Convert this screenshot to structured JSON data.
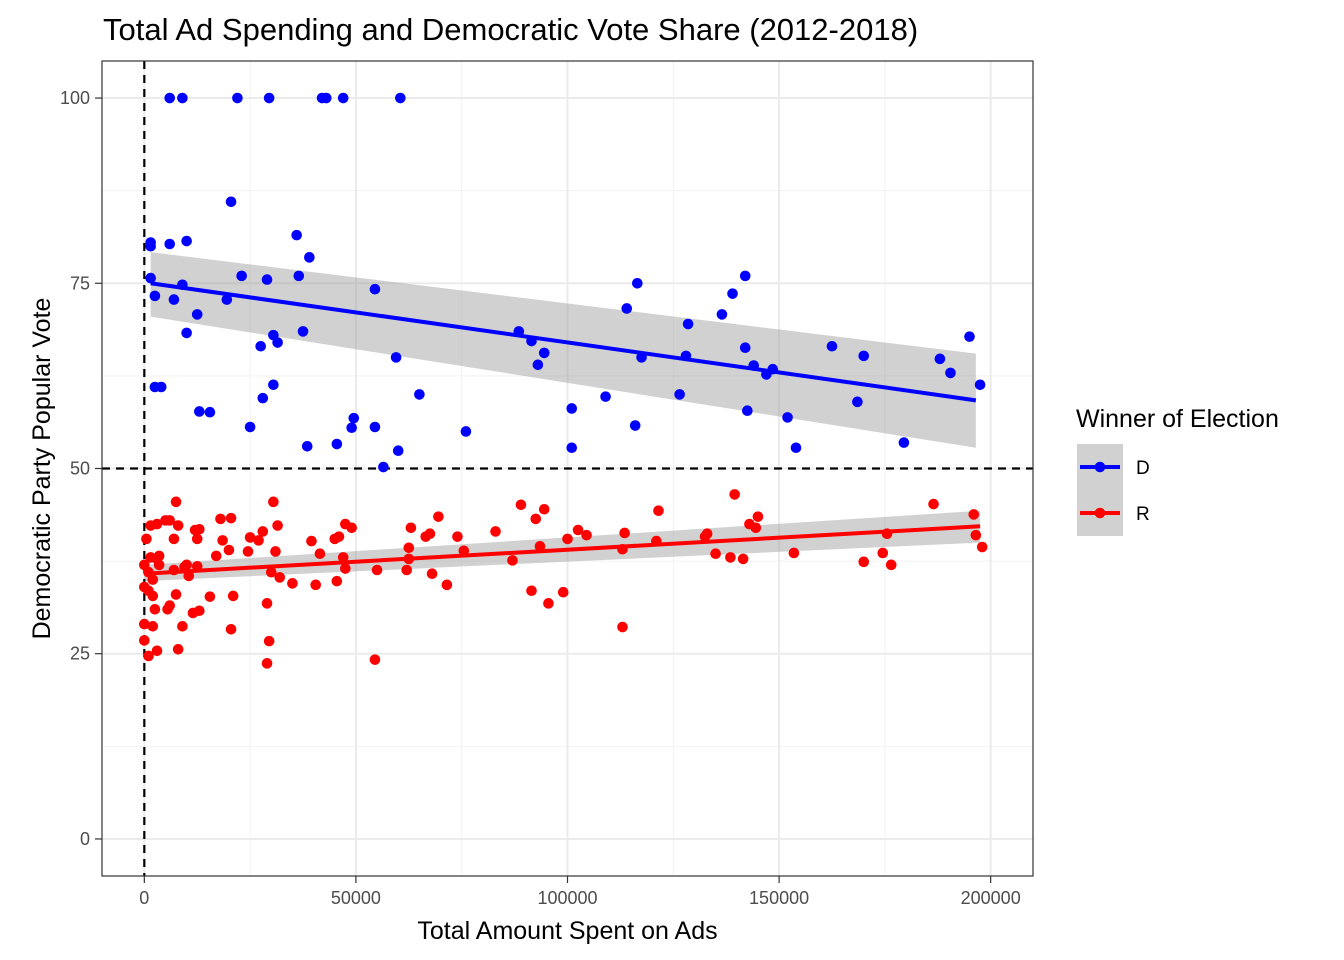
{
  "chart_data": {
    "type": "scatter",
    "title": "Total Ad Spending and Democratic Vote Share (2012-2018)",
    "xlabel": "Total Amount Spent on Ads",
    "ylabel": "Democratic Party Popular Vote",
    "xlim": [
      -10000,
      210000
    ],
    "ylim": [
      -5,
      105
    ],
    "x_ticks": [
      0,
      50000,
      100000,
      150000,
      200000
    ],
    "x_tick_labels": [
      "0",
      "50000",
      "100000",
      "150000",
      "200000"
    ],
    "y_ticks": [
      0,
      25,
      50,
      75,
      100
    ],
    "y_tick_labels": [
      "0",
      "25",
      "50",
      "75",
      "100"
    ],
    "grid": true,
    "reference_lines": {
      "vline_x": 0,
      "hline_y": 50,
      "style": "dashed"
    },
    "legend": {
      "title": "Winner of Election",
      "placement": "right"
    },
    "series": [
      {
        "name": "D",
        "color": "#0000ff",
        "fit": {
          "x": [
            1500,
            196500
          ],
          "y": [
            75.0,
            59.2
          ],
          "ci_lower": [
            70.5,
            52.8
          ],
          "ci_upper": [
            79.2,
            65.5
          ]
        },
        "points": [
          [
            6000,
            100
          ],
          [
            9000,
            100
          ],
          [
            22000,
            100
          ],
          [
            29500,
            100
          ],
          [
            42000,
            100
          ],
          [
            43000,
            100
          ],
          [
            47000,
            100
          ],
          [
            60500,
            100
          ],
          [
            20500,
            86
          ],
          [
            1500,
            80.5
          ],
          [
            1500,
            80
          ],
          [
            6000,
            80.3
          ],
          [
            10000,
            80.7
          ],
          [
            36000,
            81.5
          ],
          [
            39000,
            78.5
          ],
          [
            36500,
            76
          ],
          [
            23000,
            76
          ],
          [
            1500,
            75.7
          ],
          [
            29000,
            75.5
          ],
          [
            9000,
            74.8
          ],
          [
            2500,
            73.3
          ],
          [
            7000,
            72.8
          ],
          [
            19500,
            72.8
          ],
          [
            12500,
            70.8
          ],
          [
            54500,
            74.2
          ],
          [
            10000,
            68.3
          ],
          [
            30500,
            68
          ],
          [
            37500,
            68.5
          ],
          [
            31500,
            67
          ],
          [
            27500,
            66.5
          ],
          [
            59500,
            65
          ],
          [
            2500,
            61
          ],
          [
            4000,
            61
          ],
          [
            30500,
            61.3
          ],
          [
            28000,
            59.5
          ],
          [
            13000,
            57.7
          ],
          [
            15500,
            57.6
          ],
          [
            25000,
            55.6
          ],
          [
            49500,
            56.8
          ],
          [
            49000,
            55.5
          ],
          [
            54500,
            55.6
          ],
          [
            65000,
            60
          ],
          [
            45500,
            53.3
          ],
          [
            38500,
            53
          ],
          [
            56500,
            50.2
          ],
          [
            60000,
            52.4
          ],
          [
            76000,
            55
          ],
          [
            88500,
            68.5
          ],
          [
            91500,
            67.2
          ],
          [
            93000,
            64
          ],
          [
            94500,
            65.6
          ],
          [
            101000,
            58.1
          ],
          [
            101000,
            52.8
          ],
          [
            109000,
            59.7
          ],
          [
            114000,
            71.6
          ],
          [
            116500,
            75
          ],
          [
            116000,
            55.8
          ],
          [
            117500,
            65
          ],
          [
            126500,
            60
          ],
          [
            128500,
            69.5
          ],
          [
            128000,
            65.2
          ],
          [
            136500,
            70.8
          ],
          [
            139000,
            73.6
          ],
          [
            142000,
            76
          ],
          [
            142000,
            66.3
          ],
          [
            142500,
            57.8
          ],
          [
            144000,
            63.9
          ],
          [
            147000,
            62.7
          ],
          [
            148500,
            63.4
          ],
          [
            152000,
            56.9
          ],
          [
            154000,
            52.8
          ],
          [
            162500,
            66.5
          ],
          [
            168500,
            59
          ],
          [
            170000,
            65.2
          ],
          [
            179500,
            53.5
          ],
          [
            188000,
            64.8
          ],
          [
            190500,
            62.9
          ],
          [
            195000,
            67.8
          ],
          [
            197500,
            61.3
          ]
        ]
      },
      {
        "name": "R",
        "color": "#ff0000",
        "fit": {
          "x": [
            0,
            197500
          ],
          "y": [
            35.8,
            42.2
          ],
          "ci_lower": [
            34.8,
            40.0
          ],
          "ci_upper": [
            37.0,
            44.3
          ]
        },
        "points": [
          [
            0,
            37
          ],
          [
            0,
            34
          ],
          [
            0,
            29
          ],
          [
            0,
            26.8
          ],
          [
            500,
            40.5
          ],
          [
            1000,
            24.7
          ],
          [
            1000,
            36
          ],
          [
            1000,
            33.5
          ],
          [
            1500,
            42.3
          ],
          [
            1500,
            38
          ],
          [
            2000,
            35
          ],
          [
            2000,
            32.8
          ],
          [
            2000,
            28.7
          ],
          [
            2500,
            31
          ],
          [
            3000,
            42.5
          ],
          [
            3000,
            37.8
          ],
          [
            3000,
            25.4
          ],
          [
            3500,
            38.2
          ],
          [
            3500,
            37
          ],
          [
            5000,
            43
          ],
          [
            5500,
            31
          ],
          [
            6000,
            31.5
          ],
          [
            6000,
            43
          ],
          [
            7000,
            40.5
          ],
          [
            7000,
            36.3
          ],
          [
            7500,
            45.5
          ],
          [
            7500,
            33
          ],
          [
            8000,
            42.3
          ],
          [
            8000,
            25.6
          ],
          [
            9000,
            28.7
          ],
          [
            9500,
            36.7
          ],
          [
            10000,
            37
          ],
          [
            10500,
            35.5
          ],
          [
            11500,
            30.5
          ],
          [
            12000,
            41.7
          ],
          [
            12500,
            40.5
          ],
          [
            12500,
            36.8
          ],
          [
            13000,
            30.8
          ],
          [
            13000,
            41.8
          ],
          [
            15500,
            32.7
          ],
          [
            17000,
            38.2
          ],
          [
            18000,
            43.2
          ],
          [
            18500,
            40.3
          ],
          [
            20000,
            39
          ],
          [
            20500,
            43.3
          ],
          [
            20500,
            28.3
          ],
          [
            21000,
            32.8
          ],
          [
            24500,
            38.8
          ],
          [
            25000,
            40.7
          ],
          [
            27000,
            40.3
          ],
          [
            28000,
            41.5
          ],
          [
            29000,
            31.8
          ],
          [
            29000,
            23.7
          ],
          [
            29500,
            26.7
          ],
          [
            30000,
            36
          ],
          [
            30500,
            45.5
          ],
          [
            31000,
            38.8
          ],
          [
            31500,
            42.3
          ],
          [
            32000,
            35.3
          ],
          [
            35000,
            34.5
          ],
          [
            39500,
            40.2
          ],
          [
            40500,
            34.3
          ],
          [
            41500,
            38.5
          ],
          [
            45000,
            40.5
          ],
          [
            45500,
            34.8
          ],
          [
            46000,
            40.8
          ],
          [
            47000,
            38
          ],
          [
            47500,
            42.5
          ],
          [
            47500,
            36.5
          ],
          [
            49000,
            42
          ],
          [
            54500,
            24.2
          ],
          [
            55000,
            36.3
          ],
          [
            62000,
            36.3
          ],
          [
            62500,
            37.8
          ],
          [
            62500,
            39.3
          ],
          [
            63000,
            42
          ],
          [
            66500,
            40.8
          ],
          [
            67500,
            41.2
          ],
          [
            68000,
            35.8
          ],
          [
            69500,
            43.5
          ],
          [
            71500,
            34.3
          ],
          [
            74000,
            40.8
          ],
          [
            75500,
            38.9
          ],
          [
            83000,
            41.5
          ],
          [
            87000,
            37.6
          ],
          [
            89000,
            45.1
          ],
          [
            91500,
            33.5
          ],
          [
            92500,
            43.2
          ],
          [
            93500,
            39.5
          ],
          [
            94500,
            44.5
          ],
          [
            95500,
            31.8
          ],
          [
            99000,
            33.3
          ],
          [
            100000,
            40.5
          ],
          [
            102500,
            41.7
          ],
          [
            104500,
            41
          ],
          [
            113000,
            39.1
          ],
          [
            113500,
            41.3
          ],
          [
            113000,
            28.6
          ],
          [
            121000,
            40.2
          ],
          [
            121500,
            44.3
          ],
          [
            132500,
            40.8
          ],
          [
            133000,
            41.2
          ],
          [
            135000,
            38.5
          ],
          [
            138500,
            38
          ],
          [
            139500,
            46.5
          ],
          [
            141500,
            37.8
          ],
          [
            143000,
            42.5
          ],
          [
            144500,
            42
          ],
          [
            145000,
            43.5
          ],
          [
            153500,
            38.6
          ],
          [
            170000,
            37.4
          ],
          [
            174500,
            38.6
          ],
          [
            175500,
            41.2
          ],
          [
            176500,
            37
          ],
          [
            186500,
            45.2
          ],
          [
            196000,
            43.8
          ],
          [
            196500,
            41
          ],
          [
            198000,
            39.4
          ]
        ]
      }
    ]
  }
}
